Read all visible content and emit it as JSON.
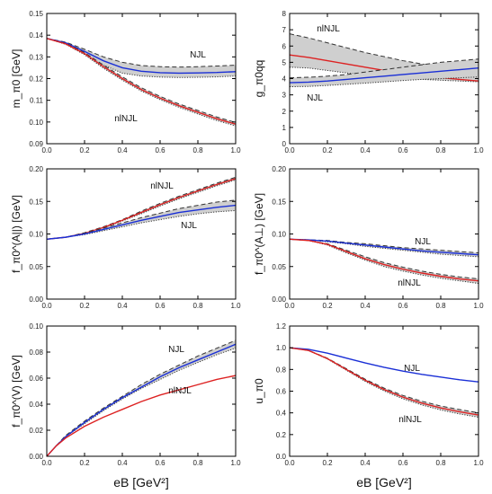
{
  "colors": {
    "njl": "#1a2fd6",
    "nlnjl": "#dd2222",
    "band": "#cfcfcf",
    "frame": "#000000"
  },
  "x_axis_label": "eB [GeV²]",
  "chart_data": [
    {
      "id": "m",
      "type": "line",
      "ylabel": "m_π0 [GeV]",
      "xlim": [
        0,
        1
      ],
      "ylim": [
        0.09,
        0.15
      ],
      "xticks": [
        "0.0",
        "0.2",
        "0.4",
        "0.6",
        "0.8",
        "1.0"
      ],
      "yticks": [
        "0.09",
        "0.10",
        "0.11",
        "0.12",
        "0.13",
        "0.14",
        "0.15"
      ],
      "annotations": [
        "NJL",
        "nlNJL"
      ],
      "series": [
        {
          "color": "njl",
          "x": [
            0,
            0.1,
            0.2,
            0.3,
            0.4,
            0.5,
            0.6,
            0.7,
            0.8,
            0.9,
            1.0
          ],
          "y": [
            0.1385,
            0.1365,
            0.1325,
            0.1282,
            0.125,
            0.1234,
            0.1227,
            0.1225,
            0.1226,
            0.1228,
            0.1232
          ],
          "band_lo": [
            0.1385,
            0.1362,
            0.1315,
            0.1262,
            0.1225,
            0.1212,
            0.1207,
            0.1205,
            0.1206,
            0.1208,
            0.1212
          ],
          "band_hi": [
            0.1385,
            0.1368,
            0.1335,
            0.13,
            0.1275,
            0.126,
            0.1255,
            0.1253,
            0.1255,
            0.1258,
            0.1262
          ]
        },
        {
          "color": "nlnjl",
          "x": [
            0,
            0.1,
            0.2,
            0.3,
            0.4,
            0.5,
            0.6,
            0.7,
            0.8,
            0.9,
            1.0
          ],
          "y": [
            0.1385,
            0.136,
            0.1315,
            0.1255,
            0.12,
            0.115,
            0.111,
            0.1075,
            0.1045,
            0.1015,
            0.099
          ],
          "band_lo": [
            0.1385,
            0.1358,
            0.131,
            0.1248,
            0.1193,
            0.1143,
            0.1103,
            0.1068,
            0.1037,
            0.1007,
            0.0982
          ],
          "band_hi": [
            0.1385,
            0.1362,
            0.132,
            0.1262,
            0.1208,
            0.1158,
            0.1118,
            0.1083,
            0.1053,
            0.1023,
            0.0998
          ]
        }
      ]
    },
    {
      "id": "g",
      "type": "line",
      "ylabel": "g_π0qq",
      "xlim": [
        0,
        1
      ],
      "ylim": [
        0,
        8
      ],
      "xticks": [
        "0.0",
        "0.2",
        "0.4",
        "0.6",
        "0.8",
        "1.0"
      ],
      "yticks": [
        "0",
        "1",
        "2",
        "3",
        "4",
        "5",
        "6",
        "7",
        "8"
      ],
      "annotations": [
        "nlNJL",
        "NJL"
      ],
      "series": [
        {
          "color": "nlnjl",
          "x": [
            0,
            0.1,
            0.2,
            0.3,
            0.4,
            0.5,
            0.6,
            0.7,
            0.8,
            0.9,
            1.0
          ],
          "y": [
            5.45,
            5.3,
            5.1,
            4.9,
            4.7,
            4.5,
            4.35,
            4.2,
            4.05,
            3.95,
            3.85
          ],
          "band_lo": [
            4.7,
            4.65,
            4.5,
            4.35,
            4.2,
            4.1,
            4.0,
            3.95,
            3.9,
            3.85,
            3.8
          ],
          "band_hi": [
            6.75,
            6.5,
            6.2,
            5.9,
            5.6,
            5.35,
            5.1,
            4.9,
            4.7,
            4.5,
            4.3
          ]
        },
        {
          "color": "njl",
          "x": [
            0,
            0.1,
            0.2,
            0.3,
            0.4,
            0.5,
            0.6,
            0.7,
            0.8,
            0.9,
            1.0
          ],
          "y": [
            3.75,
            3.78,
            3.85,
            3.95,
            4.05,
            4.15,
            4.25,
            4.35,
            4.45,
            4.55,
            4.65
          ],
          "band_lo": [
            3.5,
            3.52,
            3.58,
            3.65,
            3.72,
            3.8,
            3.88,
            3.95,
            4.0,
            4.05,
            4.1
          ],
          "band_hi": [
            4.05,
            4.08,
            4.15,
            4.25,
            4.4,
            4.55,
            4.7,
            4.85,
            5.0,
            5.1,
            5.2
          ]
        }
      ]
    },
    {
      "id": "fA_par",
      "type": "line",
      "ylabel": "f_π0^(A||) [GeV]",
      "xlim": [
        0,
        1
      ],
      "ylim": [
        0.0,
        0.2
      ],
      "xticks": [
        "0.0",
        "0.2",
        "0.4",
        "0.6",
        "0.8",
        "1.0"
      ],
      "yticks": [
        "0.00",
        "0.05",
        "0.10",
        "0.15",
        "0.20"
      ],
      "annotations": [
        "nlNJL",
        "NJL"
      ],
      "series": [
        {
          "color": "nlnjl",
          "x": [
            0,
            0.1,
            0.2,
            0.3,
            0.4,
            0.5,
            0.6,
            0.7,
            0.8,
            0.9,
            1.0
          ],
          "y": [
            0.092,
            0.095,
            0.101,
            0.11,
            0.121,
            0.133,
            0.145,
            0.156,
            0.166,
            0.176,
            0.185
          ],
          "band_lo": [
            0.092,
            0.095,
            0.1,
            0.109,
            0.12,
            0.131,
            0.143,
            0.154,
            0.164,
            0.174,
            0.183
          ],
          "band_hi": [
            0.092,
            0.095,
            0.102,
            0.111,
            0.122,
            0.135,
            0.147,
            0.158,
            0.168,
            0.178,
            0.187
          ]
        },
        {
          "color": "njl",
          "x": [
            0,
            0.1,
            0.2,
            0.3,
            0.4,
            0.5,
            0.6,
            0.7,
            0.8,
            0.9,
            1.0
          ],
          "y": [
            0.092,
            0.095,
            0.1,
            0.107,
            0.114,
            0.121,
            0.127,
            0.133,
            0.137,
            0.141,
            0.144
          ],
          "band_lo": [
            0.092,
            0.095,
            0.099,
            0.105,
            0.111,
            0.117,
            0.122,
            0.127,
            0.131,
            0.134,
            0.136
          ],
          "band_hi": [
            0.092,
            0.095,
            0.101,
            0.109,
            0.117,
            0.125,
            0.132,
            0.139,
            0.144,
            0.149,
            0.152
          ]
        }
      ]
    },
    {
      "id": "fA_perp",
      "type": "line",
      "ylabel": "f_π0^(A⊥) [GeV]",
      "xlim": [
        0,
        1
      ],
      "ylim": [
        0.0,
        0.2
      ],
      "xticks": [
        "0.0",
        "0.2",
        "0.4",
        "0.6",
        "0.8",
        "1.0"
      ],
      "yticks": [
        "0.00",
        "0.05",
        "0.10",
        "0.15",
        "0.20"
      ],
      "annotations": [
        "NJL",
        "nlNJL"
      ],
      "series": [
        {
          "color": "njl",
          "x": [
            0,
            0.1,
            0.2,
            0.3,
            0.4,
            0.5,
            0.6,
            0.7,
            0.8,
            0.9,
            1.0
          ],
          "y": [
            0.092,
            0.091,
            0.089,
            0.086,
            0.083,
            0.08,
            0.077,
            0.074,
            0.072,
            0.07,
            0.068
          ],
          "band_lo": [
            0.092,
            0.091,
            0.088,
            0.085,
            0.081,
            0.078,
            0.075,
            0.072,
            0.069,
            0.067,
            0.065
          ],
          "band_hi": [
            0.092,
            0.091,
            0.09,
            0.087,
            0.085,
            0.082,
            0.079,
            0.077,
            0.075,
            0.073,
            0.071
          ]
        },
        {
          "color": "nlnjl",
          "x": [
            0,
            0.1,
            0.2,
            0.3,
            0.4,
            0.5,
            0.6,
            0.7,
            0.8,
            0.9,
            1.0
          ],
          "y": [
            0.092,
            0.09,
            0.084,
            0.073,
            0.062,
            0.053,
            0.046,
            0.04,
            0.035,
            0.031,
            0.028
          ],
          "band_lo": [
            0.092,
            0.09,
            0.083,
            0.071,
            0.06,
            0.05,
            0.043,
            0.037,
            0.032,
            0.028,
            0.024
          ],
          "band_hi": [
            0.092,
            0.09,
            0.085,
            0.075,
            0.065,
            0.056,
            0.049,
            0.043,
            0.038,
            0.034,
            0.031
          ]
        }
      ]
    },
    {
      "id": "fV",
      "type": "line",
      "ylabel": "f_π0^(V) [GeV]",
      "xlim": [
        0,
        1
      ],
      "ylim": [
        0.0,
        0.1
      ],
      "xticks": [
        "0.0",
        "0.2",
        "0.4",
        "0.6",
        "0.8",
        "1.0"
      ],
      "yticks": [
        "0.00",
        "0.02",
        "0.04",
        "0.06",
        "0.08",
        "0.10"
      ],
      "annotations": [
        "NJL",
        "nlNJL"
      ],
      "series": [
        {
          "color": "njl",
          "x": [
            0,
            0.05,
            0.1,
            0.2,
            0.3,
            0.4,
            0.5,
            0.6,
            0.7,
            0.8,
            0.9,
            1.0
          ],
          "y": [
            0.0,
            0.008,
            0.015,
            0.026,
            0.036,
            0.045,
            0.053,
            0.061,
            0.068,
            0.074,
            0.08,
            0.086
          ],
          "band_lo": [
            0.0,
            0.008,
            0.015,
            0.025,
            0.035,
            0.044,
            0.052,
            0.059,
            0.066,
            0.072,
            0.078,
            0.083
          ],
          "band_hi": [
            0.0,
            0.008,
            0.016,
            0.027,
            0.037,
            0.046,
            0.055,
            0.063,
            0.07,
            0.077,
            0.083,
            0.089
          ]
        },
        {
          "color": "nlnjl",
          "x": [
            0,
            0.05,
            0.1,
            0.2,
            0.3,
            0.4,
            0.5,
            0.6,
            0.7,
            0.8,
            0.9,
            1.0
          ],
          "y": [
            0.0,
            0.008,
            0.014,
            0.023,
            0.03,
            0.036,
            0.042,
            0.047,
            0.051,
            0.055,
            0.059,
            0.062
          ]
        }
      ]
    },
    {
      "id": "u",
      "type": "line",
      "ylabel": "u_π0",
      "xlim": [
        0,
        1
      ],
      "ylim": [
        0.0,
        1.2
      ],
      "xticks": [
        "0.0",
        "0.2",
        "0.4",
        "0.6",
        "0.8",
        "1.0"
      ],
      "yticks": [
        "0.0",
        "0.2",
        "0.4",
        "0.6",
        "0.8",
        "1.0",
        "1.2"
      ],
      "annotations": [
        "NJL",
        "nlNJL"
      ],
      "series": [
        {
          "color": "njl",
          "x": [
            0,
            0.1,
            0.2,
            0.3,
            0.4,
            0.5,
            0.6,
            0.7,
            0.8,
            0.9,
            1.0
          ],
          "y": [
            1.0,
            0.985,
            0.95,
            0.905,
            0.86,
            0.82,
            0.785,
            0.755,
            0.73,
            0.705,
            0.685
          ]
        },
        {
          "color": "nlnjl",
          "x": [
            0,
            0.1,
            0.2,
            0.3,
            0.4,
            0.5,
            0.6,
            0.7,
            0.8,
            0.9,
            1.0
          ],
          "y": [
            1.0,
            0.975,
            0.9,
            0.8,
            0.7,
            0.615,
            0.545,
            0.49,
            0.445,
            0.41,
            0.38
          ],
          "band_lo": [
            1.0,
            0.974,
            0.896,
            0.793,
            0.69,
            0.602,
            0.53,
            0.473,
            0.427,
            0.39,
            0.36
          ],
          "band_hi": [
            1.0,
            0.976,
            0.904,
            0.807,
            0.71,
            0.628,
            0.56,
            0.507,
            0.463,
            0.43,
            0.4
          ]
        }
      ]
    }
  ]
}
